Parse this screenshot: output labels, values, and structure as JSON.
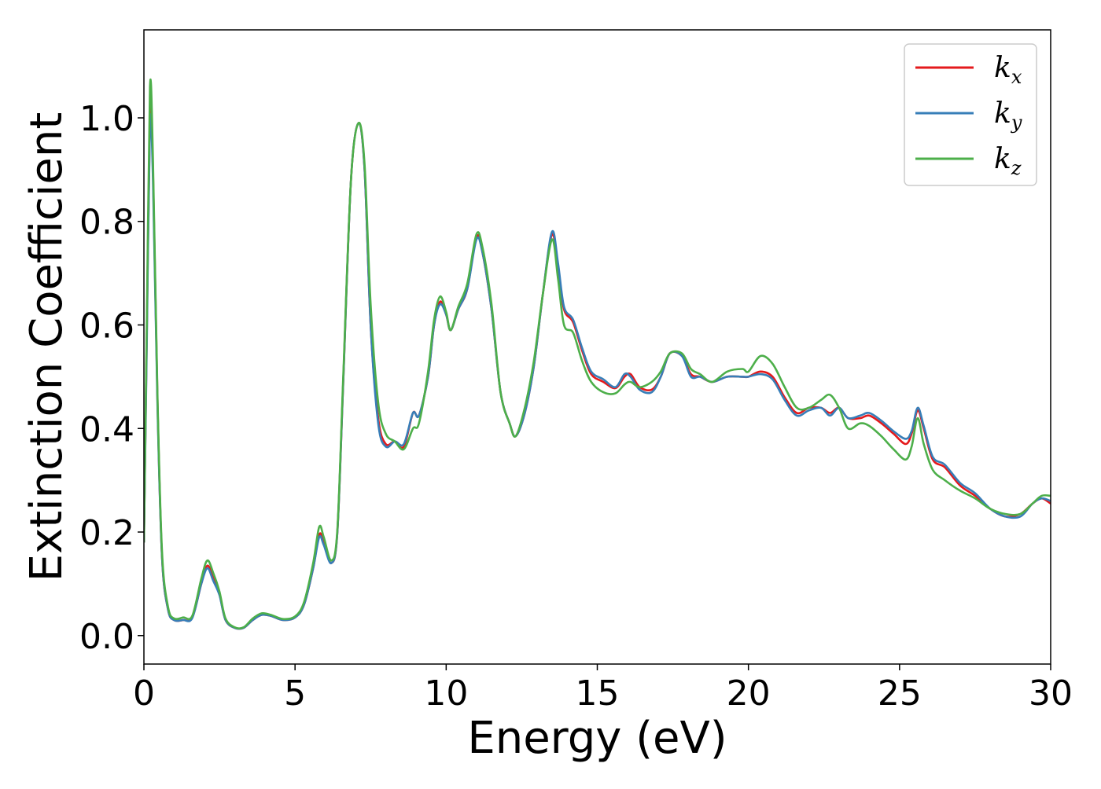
{
  "chart_data": {
    "type": "line",
    "title": "",
    "xlabel": "Energy (eV)",
    "ylabel": "Extinction Coefficient",
    "xlim": [
      0,
      30
    ],
    "ylim": [
      -0.055,
      1.17
    ],
    "xticks": [
      0,
      5,
      10,
      15,
      20,
      25,
      30
    ],
    "xtick_labels": [
      "0",
      "5",
      "10",
      "15",
      "20",
      "25",
      "30"
    ],
    "yticks": [
      0.0,
      0.2,
      0.4,
      0.6,
      0.8,
      1.0
    ],
    "ytick_labels": [
      "0.0",
      "0.2",
      "0.4",
      "0.6",
      "0.8",
      "1.0"
    ],
    "grid": false,
    "legend_position": "top-right",
    "series": [
      {
        "name": "k_x",
        "base": "k",
        "sub": "x",
        "color": "#e41a1c",
        "points": [
          [
            0,
            0.18
          ],
          [
            0.1,
            0.6
          ],
          [
            0.2,
            1.0
          ],
          [
            0.3,
            0.9
          ],
          [
            0.45,
            0.45
          ],
          [
            0.6,
            0.15
          ],
          [
            0.8,
            0.05
          ],
          [
            1.0,
            0.03
          ],
          [
            1.3,
            0.03
          ],
          [
            1.6,
            0.035
          ],
          [
            1.9,
            0.1
          ],
          [
            2.1,
            0.135
          ],
          [
            2.3,
            0.11
          ],
          [
            2.5,
            0.08
          ],
          [
            2.7,
            0.03
          ],
          [
            3.0,
            0.015
          ],
          [
            3.3,
            0.015
          ],
          [
            3.6,
            0.03
          ],
          [
            3.9,
            0.04
          ],
          [
            4.2,
            0.038
          ],
          [
            4.6,
            0.03
          ],
          [
            5.0,
            0.035
          ],
          [
            5.3,
            0.06
          ],
          [
            5.6,
            0.13
          ],
          [
            5.8,
            0.195
          ],
          [
            5.95,
            0.18
          ],
          [
            6.2,
            0.14
          ],
          [
            6.4,
            0.2
          ],
          [
            6.6,
            0.5
          ],
          [
            6.85,
            0.88
          ],
          [
            7.1,
            0.99
          ],
          [
            7.3,
            0.9
          ],
          [
            7.5,
            0.6
          ],
          [
            7.75,
            0.42
          ],
          [
            8.0,
            0.37
          ],
          [
            8.3,
            0.375
          ],
          [
            8.6,
            0.365
          ],
          [
            8.9,
            0.43
          ],
          [
            9.1,
            0.425
          ],
          [
            9.4,
            0.5
          ],
          [
            9.6,
            0.6
          ],
          [
            9.8,
            0.645
          ],
          [
            10.0,
            0.62
          ],
          [
            10.15,
            0.59
          ],
          [
            10.4,
            0.63
          ],
          [
            10.7,
            0.67
          ],
          [
            11.0,
            0.77
          ],
          [
            11.2,
            0.74
          ],
          [
            11.5,
            0.63
          ],
          [
            11.8,
            0.47
          ],
          [
            12.1,
            0.41
          ],
          [
            12.3,
            0.385
          ],
          [
            12.6,
            0.43
          ],
          [
            12.9,
            0.52
          ],
          [
            13.2,
            0.66
          ],
          [
            13.5,
            0.775
          ],
          [
            13.7,
            0.71
          ],
          [
            13.9,
            0.63
          ],
          [
            14.2,
            0.605
          ],
          [
            14.5,
            0.55
          ],
          [
            14.8,
            0.505
          ],
          [
            15.2,
            0.49
          ],
          [
            15.6,
            0.478
          ],
          [
            15.9,
            0.5
          ],
          [
            16.1,
            0.505
          ],
          [
            16.4,
            0.48
          ],
          [
            16.8,
            0.475
          ],
          [
            17.1,
            0.5
          ],
          [
            17.4,
            0.545
          ],
          [
            17.8,
            0.54
          ],
          [
            18.1,
            0.505
          ],
          [
            18.4,
            0.5
          ],
          [
            18.8,
            0.49
          ],
          [
            19.3,
            0.5
          ],
          [
            19.8,
            0.5
          ],
          [
            20.0,
            0.5
          ],
          [
            20.4,
            0.51
          ],
          [
            20.8,
            0.5
          ],
          [
            21.2,
            0.46
          ],
          [
            21.6,
            0.43
          ],
          [
            22.0,
            0.44
          ],
          [
            22.4,
            0.44
          ],
          [
            22.7,
            0.43
          ],
          [
            23.0,
            0.44
          ],
          [
            23.3,
            0.42
          ],
          [
            23.7,
            0.42
          ],
          [
            24.0,
            0.425
          ],
          [
            24.4,
            0.41
          ],
          [
            24.8,
            0.39
          ],
          [
            25.2,
            0.37
          ],
          [
            25.4,
            0.39
          ],
          [
            25.6,
            0.435
          ],
          [
            25.8,
            0.4
          ],
          [
            26.1,
            0.34
          ],
          [
            26.5,
            0.325
          ],
          [
            27.0,
            0.29
          ],
          [
            27.5,
            0.27
          ],
          [
            28.0,
            0.245
          ],
          [
            28.5,
            0.23
          ],
          [
            29.0,
            0.235
          ],
          [
            29.4,
            0.255
          ],
          [
            29.7,
            0.265
          ],
          [
            30.0,
            0.255
          ]
        ]
      },
      {
        "name": "k_y",
        "base": "k",
        "sub": "y",
        "color": "#377eb8",
        "points": [
          [
            0,
            0.18
          ],
          [
            0.1,
            0.58
          ],
          [
            0.2,
            0.99
          ],
          [
            0.3,
            0.88
          ],
          [
            0.45,
            0.44
          ],
          [
            0.6,
            0.15
          ],
          [
            0.8,
            0.05
          ],
          [
            1.0,
            0.03
          ],
          [
            1.3,
            0.03
          ],
          [
            1.6,
            0.034
          ],
          [
            1.9,
            0.1
          ],
          [
            2.1,
            0.13
          ],
          [
            2.3,
            0.105
          ],
          [
            2.5,
            0.078
          ],
          [
            2.7,
            0.03
          ],
          [
            3.0,
            0.015
          ],
          [
            3.3,
            0.015
          ],
          [
            3.6,
            0.03
          ],
          [
            3.9,
            0.04
          ],
          [
            4.2,
            0.038
          ],
          [
            4.6,
            0.03
          ],
          [
            5.0,
            0.035
          ],
          [
            5.3,
            0.06
          ],
          [
            5.6,
            0.13
          ],
          [
            5.8,
            0.19
          ],
          [
            5.95,
            0.175
          ],
          [
            6.2,
            0.14
          ],
          [
            6.4,
            0.2
          ],
          [
            6.6,
            0.5
          ],
          [
            6.85,
            0.88
          ],
          [
            7.1,
            0.99
          ],
          [
            7.3,
            0.9
          ],
          [
            7.5,
            0.6
          ],
          [
            7.75,
            0.41
          ],
          [
            8.0,
            0.365
          ],
          [
            8.3,
            0.375
          ],
          [
            8.6,
            0.37
          ],
          [
            8.9,
            0.43
          ],
          [
            9.1,
            0.425
          ],
          [
            9.4,
            0.5
          ],
          [
            9.6,
            0.6
          ],
          [
            9.8,
            0.64
          ],
          [
            10.0,
            0.62
          ],
          [
            10.15,
            0.59
          ],
          [
            10.4,
            0.63
          ],
          [
            10.7,
            0.67
          ],
          [
            11.0,
            0.765
          ],
          [
            11.2,
            0.74
          ],
          [
            11.5,
            0.63
          ],
          [
            11.8,
            0.47
          ],
          [
            12.1,
            0.41
          ],
          [
            12.3,
            0.385
          ],
          [
            12.6,
            0.43
          ],
          [
            12.9,
            0.52
          ],
          [
            13.2,
            0.66
          ],
          [
            13.5,
            0.78
          ],
          [
            13.7,
            0.72
          ],
          [
            13.9,
            0.635
          ],
          [
            14.2,
            0.61
          ],
          [
            14.5,
            0.555
          ],
          [
            14.8,
            0.51
          ],
          [
            15.2,
            0.495
          ],
          [
            15.6,
            0.48
          ],
          [
            15.9,
            0.505
          ],
          [
            16.1,
            0.5
          ],
          [
            16.4,
            0.475
          ],
          [
            16.8,
            0.47
          ],
          [
            17.1,
            0.5
          ],
          [
            17.4,
            0.545
          ],
          [
            17.8,
            0.54
          ],
          [
            18.1,
            0.5
          ],
          [
            18.4,
            0.5
          ],
          [
            18.8,
            0.49
          ],
          [
            19.3,
            0.5
          ],
          [
            19.8,
            0.5
          ],
          [
            20.0,
            0.5
          ],
          [
            20.4,
            0.505
          ],
          [
            20.8,
            0.495
          ],
          [
            21.2,
            0.455
          ],
          [
            21.6,
            0.425
          ],
          [
            22.0,
            0.435
          ],
          [
            22.4,
            0.44
          ],
          [
            22.7,
            0.425
          ],
          [
            23.0,
            0.44
          ],
          [
            23.3,
            0.42
          ],
          [
            23.7,
            0.425
          ],
          [
            24.0,
            0.43
          ],
          [
            24.4,
            0.415
          ],
          [
            24.8,
            0.395
          ],
          [
            25.2,
            0.38
          ],
          [
            25.4,
            0.395
          ],
          [
            25.6,
            0.44
          ],
          [
            25.8,
            0.405
          ],
          [
            26.1,
            0.345
          ],
          [
            26.5,
            0.33
          ],
          [
            27.0,
            0.295
          ],
          [
            27.5,
            0.275
          ],
          [
            28.0,
            0.245
          ],
          [
            28.5,
            0.23
          ],
          [
            29.0,
            0.23
          ],
          [
            29.4,
            0.255
          ],
          [
            29.7,
            0.265
          ],
          [
            30.0,
            0.26
          ]
        ]
      },
      {
        "name": "k_z",
        "base": "k",
        "sub": "z",
        "color": "#4daf4a",
        "points": [
          [
            0,
            0.18
          ],
          [
            0.1,
            0.62
          ],
          [
            0.2,
            1.06
          ],
          [
            0.3,
            0.92
          ],
          [
            0.45,
            0.46
          ],
          [
            0.6,
            0.16
          ],
          [
            0.8,
            0.055
          ],
          [
            1.0,
            0.033
          ],
          [
            1.3,
            0.035
          ],
          [
            1.6,
            0.038
          ],
          [
            1.9,
            0.11
          ],
          [
            2.1,
            0.145
          ],
          [
            2.3,
            0.12
          ],
          [
            2.5,
            0.085
          ],
          [
            2.7,
            0.033
          ],
          [
            3.0,
            0.016
          ],
          [
            3.3,
            0.016
          ],
          [
            3.6,
            0.033
          ],
          [
            3.9,
            0.043
          ],
          [
            4.2,
            0.04
          ],
          [
            4.6,
            0.032
          ],
          [
            5.0,
            0.037
          ],
          [
            5.3,
            0.065
          ],
          [
            5.6,
            0.14
          ],
          [
            5.8,
            0.21
          ],
          [
            5.95,
            0.19
          ],
          [
            6.2,
            0.145
          ],
          [
            6.4,
            0.205
          ],
          [
            6.6,
            0.51
          ],
          [
            6.85,
            0.88
          ],
          [
            7.1,
            0.99
          ],
          [
            7.3,
            0.91
          ],
          [
            7.5,
            0.64
          ],
          [
            7.75,
            0.45
          ],
          [
            8.0,
            0.39
          ],
          [
            8.3,
            0.375
          ],
          [
            8.6,
            0.36
          ],
          [
            8.9,
            0.4
          ],
          [
            9.1,
            0.41
          ],
          [
            9.4,
            0.51
          ],
          [
            9.6,
            0.61
          ],
          [
            9.8,
            0.655
          ],
          [
            10.0,
            0.625
          ],
          [
            10.15,
            0.59
          ],
          [
            10.4,
            0.635
          ],
          [
            10.7,
            0.68
          ],
          [
            11.0,
            0.775
          ],
          [
            11.2,
            0.75
          ],
          [
            11.5,
            0.64
          ],
          [
            11.8,
            0.47
          ],
          [
            12.1,
            0.41
          ],
          [
            12.3,
            0.385
          ],
          [
            12.6,
            0.44
          ],
          [
            12.9,
            0.53
          ],
          [
            13.2,
            0.66
          ],
          [
            13.5,
            0.765
          ],
          [
            13.7,
            0.69
          ],
          [
            13.9,
            0.6
          ],
          [
            14.2,
            0.585
          ],
          [
            14.5,
            0.53
          ],
          [
            14.8,
            0.49
          ],
          [
            15.2,
            0.47
          ],
          [
            15.6,
            0.468
          ],
          [
            15.9,
            0.485
          ],
          [
            16.1,
            0.49
          ],
          [
            16.4,
            0.48
          ],
          [
            16.8,
            0.49
          ],
          [
            17.1,
            0.51
          ],
          [
            17.4,
            0.545
          ],
          [
            17.8,
            0.545
          ],
          [
            18.1,
            0.515
          ],
          [
            18.4,
            0.505
          ],
          [
            18.8,
            0.49
          ],
          [
            19.3,
            0.51
          ],
          [
            19.8,
            0.515
          ],
          [
            20.0,
            0.51
          ],
          [
            20.4,
            0.54
          ],
          [
            20.8,
            0.525
          ],
          [
            21.2,
            0.48
          ],
          [
            21.6,
            0.44
          ],
          [
            22.0,
            0.44
          ],
          [
            22.4,
            0.455
          ],
          [
            22.7,
            0.465
          ],
          [
            23.0,
            0.44
          ],
          [
            23.3,
            0.4
          ],
          [
            23.7,
            0.41
          ],
          [
            24.0,
            0.405
          ],
          [
            24.4,
            0.385
          ],
          [
            24.8,
            0.36
          ],
          [
            25.2,
            0.34
          ],
          [
            25.4,
            0.365
          ],
          [
            25.6,
            0.42
          ],
          [
            25.8,
            0.37
          ],
          [
            26.1,
            0.32
          ],
          [
            26.5,
            0.3
          ],
          [
            27.0,
            0.28
          ],
          [
            27.5,
            0.265
          ],
          [
            28.0,
            0.245
          ],
          [
            28.5,
            0.235
          ],
          [
            29.0,
            0.235
          ],
          [
            29.4,
            0.255
          ],
          [
            29.7,
            0.27
          ],
          [
            30.0,
            0.27
          ]
        ]
      }
    ]
  }
}
